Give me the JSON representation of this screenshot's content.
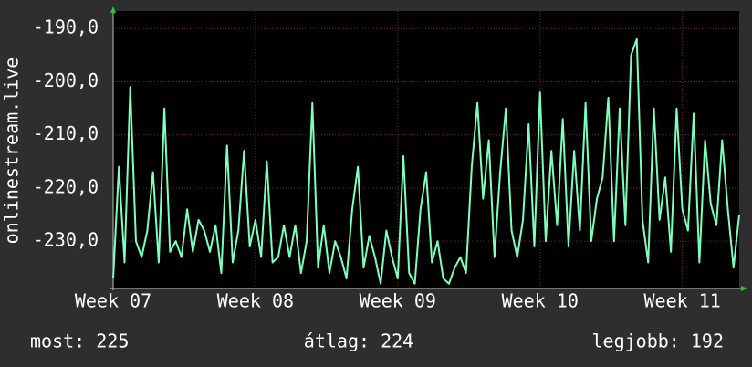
{
  "chart_data": {
    "type": "line",
    "ylabel": "onlinestream.live",
    "color": "#7dffbd",
    "grid": true,
    "xlim": [
      7,
      11.4
    ],
    "xticks": [
      {
        "value": 7,
        "label": "Week 07"
      },
      {
        "value": 8,
        "label": "Week 08"
      },
      {
        "value": 9,
        "label": "Week 09"
      },
      {
        "value": 10,
        "label": "Week 10"
      },
      {
        "value": 11,
        "label": "Week 11"
      }
    ],
    "ylim": [
      -238.9,
      -186.7
    ],
    "yticks": [
      {
        "value": -230,
        "label": "-230,0"
      },
      {
        "value": -220,
        "label": "-220,0"
      },
      {
        "value": -210,
        "label": "-210,0"
      },
      {
        "value": -200,
        "label": "-200,0"
      },
      {
        "value": -190,
        "label": "-190,0"
      }
    ],
    "x": [
      7.0,
      7.04,
      7.08,
      7.12,
      7.16,
      7.2,
      7.24,
      7.28,
      7.32,
      7.36,
      7.4,
      7.44,
      7.48,
      7.52,
      7.56,
      7.6,
      7.64,
      7.68,
      7.72,
      7.76,
      7.8,
      7.84,
      7.88,
      7.92,
      7.96,
      8.0,
      8.04,
      8.08,
      8.12,
      8.16,
      8.2,
      8.24,
      8.28,
      8.32,
      8.36,
      8.4,
      8.44,
      8.48,
      8.52,
      8.56,
      8.6,
      8.64,
      8.68,
      8.72,
      8.76,
      8.8,
      8.84,
      8.88,
      8.92,
      8.96,
      9.0,
      9.04,
      9.08,
      9.12,
      9.16,
      9.2,
      9.24,
      9.28,
      9.32,
      9.36,
      9.4,
      9.44,
      9.48,
      9.52,
      9.56,
      9.6,
      9.64,
      9.68,
      9.72,
      9.76,
      9.8,
      9.84,
      9.88,
      9.92,
      9.96,
      10.0,
      10.04,
      10.08,
      10.12,
      10.16,
      10.2,
      10.24,
      10.28,
      10.32,
      10.36,
      10.4,
      10.44,
      10.48,
      10.52,
      10.56,
      10.6,
      10.64,
      10.68,
      10.72,
      10.76,
      10.8,
      10.84,
      10.88,
      10.92,
      10.96,
      11.0,
      11.04,
      11.08,
      11.12,
      11.16,
      11.2,
      11.24,
      11.28,
      11.32,
      11.36,
      11.4
    ],
    "values": [
      -237,
      -216,
      -234,
      -201,
      -230,
      -233,
      -228,
      -217,
      -234,
      -205,
      -232,
      -230,
      -233,
      -224,
      -232,
      -226,
      -228,
      -232,
      -227,
      -236,
      -212,
      -234,
      -228,
      -213,
      -231,
      -226,
      -233,
      -215,
      -234,
      -233,
      -227,
      -233,
      -227,
      -236,
      -230,
      -204,
      -235,
      -227,
      -236,
      -230,
      -233,
      -237,
      -224,
      -216,
      -235,
      -229,
      -233,
      -238,
      -228,
      -233,
      -237,
      -214,
      -236,
      -238,
      -224,
      -217,
      -234,
      -230,
      -237,
      -238,
      -235,
      -233,
      -236,
      -216,
      -204,
      -222,
      -211,
      -233,
      -217,
      -205,
      -228,
      -233,
      -226,
      -208,
      -231,
      -202,
      -230,
      -213,
      -227,
      -207,
      -231,
      -213,
      -228,
      -204,
      -230,
      -222,
      -218,
      -203,
      -230,
      -205,
      -227,
      -195,
      -192,
      -226,
      -234,
      -205,
      -226,
      -218,
      -232,
      -205,
      -224,
      -228,
      -206,
      -234,
      -211,
      -223,
      -227,
      -211,
      -224,
      -235,
      -225
    ],
    "stats": [
      "most: 225",
      "átlag: 224",
      "legjobb: 192"
    ]
  }
}
